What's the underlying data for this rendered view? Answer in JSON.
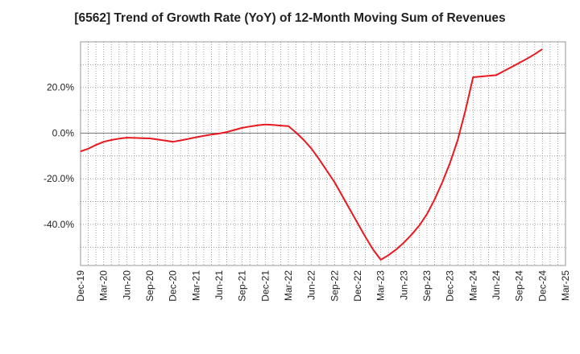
{
  "chart_data": {
    "type": "line",
    "title": "[6562]  Trend of Growth Rate (YoY) of 12-Month Moving Sum of Revenues",
    "xlabel": "",
    "ylabel": "",
    "x_tick_labels": [
      "Dec-19",
      "Mar-20",
      "Jun-20",
      "Sep-20",
      "Dec-20",
      "Mar-21",
      "Jun-21",
      "Sep-21",
      "Dec-21",
      "Mar-22",
      "Jun-22",
      "Sep-22",
      "Dec-22",
      "Mar-23",
      "Jun-23",
      "Sep-23",
      "Dec-23",
      "Mar-24",
      "Jun-24",
      "Sep-24",
      "Dec-24",
      "Mar-25"
    ],
    "y_ticks": [
      20,
      0,
      -20,
      -40
    ],
    "y_tick_labels": [
      "20.0%",
      "0.0%",
      "-20.0%",
      "-40.0%"
    ],
    "ylim": [
      -58,
      40
    ],
    "grid": true,
    "line_color": "#e8191f",
    "series": [
      {
        "x": [
          "Dec-19",
          "Jan-20",
          "Feb-20",
          "Mar-20",
          "Apr-20",
          "May-20",
          "Jun-20",
          "Jul-20",
          "Aug-20",
          "Sep-20",
          "Oct-20",
          "Nov-20",
          "Dec-20",
          "Jan-21",
          "Feb-21",
          "Mar-21",
          "Apr-21",
          "May-21",
          "Jun-21",
          "Jul-21",
          "Aug-21",
          "Sep-21",
          "Oct-21",
          "Nov-21",
          "Dec-21",
          "Jan-22",
          "Feb-22",
          "Mar-22",
          "Apr-22",
          "May-22",
          "Jun-22",
          "Jul-22",
          "Aug-22",
          "Sep-22",
          "Oct-22",
          "Nov-22",
          "Dec-22",
          "Jan-23",
          "Feb-23",
          "Mar-23",
          "Apr-23",
          "May-23",
          "Jun-23",
          "Jul-23",
          "Aug-23",
          "Sep-23",
          "Oct-23",
          "Nov-23",
          "Dec-23",
          "Jan-24",
          "Feb-24",
          "Mar-24",
          "Apr-24",
          "May-24",
          "Jun-24",
          "Jul-24",
          "Aug-24",
          "Sep-24",
          "Oct-24",
          "Nov-24",
          "Dec-24"
        ],
        "values": [
          -8.0,
          -6.8,
          -5.2,
          -3.8,
          -3.0,
          -2.4,
          -2.0,
          -2.1,
          -2.2,
          -2.3,
          -2.8,
          -3.3,
          -3.8,
          -3.2,
          -2.5,
          -1.8,
          -1.2,
          -0.6,
          -0.2,
          0.5,
          1.4,
          2.3,
          2.9,
          3.4,
          3.8,
          3.6,
          3.3,
          3.1,
          0.2,
          -3.0,
          -6.8,
          -11.5,
          -16.5,
          -21.5,
          -27.5,
          -33.5,
          -39.5,
          -45.5,
          -51.0,
          -55.5,
          -53.5,
          -51.0,
          -48.0,
          -44.5,
          -40.5,
          -35.5,
          -29.0,
          -21.5,
          -13.0,
          -3.0,
          10.0,
          24.5,
          24.8,
          25.1,
          25.4,
          27.2,
          29.0,
          30.8,
          32.6,
          34.6,
          36.8
        ]
      }
    ]
  }
}
